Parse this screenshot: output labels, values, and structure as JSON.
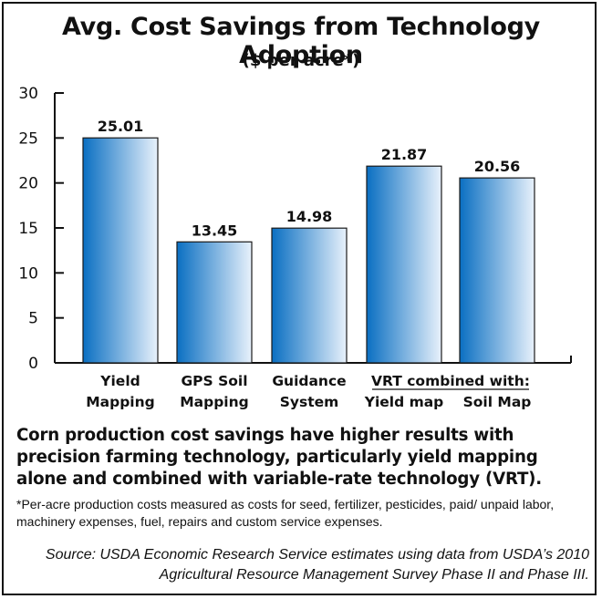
{
  "chart_data": {
    "type": "bar",
    "title": "Avg. Cost Savings from Technology Adoption",
    "subtitle": "($ per acre*)",
    "categories": [
      [
        "Yield",
        "Mapping"
      ],
      [
        "GPS Soil",
        "Mapping"
      ],
      [
        "Guidance",
        "System"
      ],
      [
        "",
        "Yield map"
      ],
      [
        "",
        "Soil Map"
      ]
    ],
    "group_label": "VRT combined with:",
    "values": [
      25.01,
      13.45,
      14.98,
      21.87,
      20.56
    ],
    "value_labels": [
      "25.01",
      "13.45",
      "14.98",
      "21.87",
      "20.56"
    ],
    "y_ticks": [
      "0",
      "5",
      "10",
      "15",
      "20",
      "25",
      "30"
    ],
    "ylim": [
      0,
      30
    ],
    "xlabel": "",
    "ylabel": "",
    "grid": false,
    "bar_color_dark": "#0a6fc2",
    "bar_color_light": "#e8f1fb"
  },
  "caption": "Corn production cost savings have higher results with precision farming technology, particularly yield mapping alone and combined with variable-rate technology (VRT).",
  "footnote": "*Per-acre production costs measured as costs for seed, fertilizer, pesticides, paid/ unpaid labor, machinery expenses, fuel, repairs and custom service expenses.",
  "source": "Source: USDA Economic Research Service estimates using data from USDA’s 2010 Agricultural Resource Management Survey Phase II and Phase III."
}
